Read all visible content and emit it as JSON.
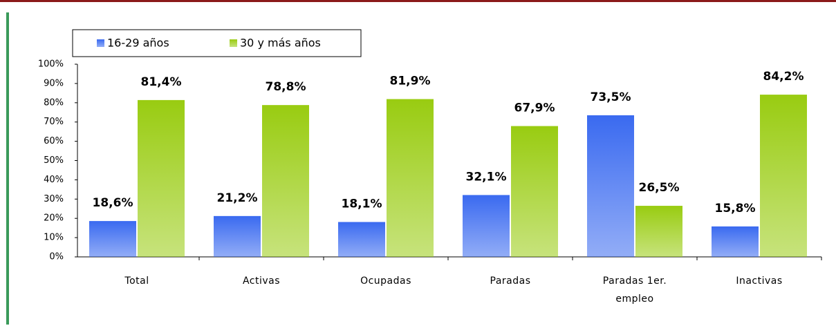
{
  "chart_data": {
    "type": "bar",
    "categories": [
      "Total",
      "Activas",
      "Ocupadas",
      "Paradas",
      "Paradas 1er. empleo",
      "Inactivas"
    ],
    "series": [
      {
        "name": "16-29 años",
        "color": "#3a6af0",
        "values": [
          18.6,
          21.2,
          18.1,
          32.1,
          73.5,
          15.8
        ],
        "value_labels": [
          "18,6%",
          "21,2%",
          "18,1%",
          "32,1%",
          "73,5%",
          "15,8%"
        ]
      },
      {
        "name": "30 y más años",
        "color": "#99cc11",
        "values": [
          81.4,
          78.8,
          81.9,
          67.9,
          26.5,
          84.2
        ],
        "value_labels": [
          "81,4%",
          "78,8%",
          "81,9%",
          "67,9%",
          "26,5%",
          "84,2%"
        ]
      }
    ],
    "ylim": [
      0,
      100
    ],
    "yticks": [
      {
        "value": 0,
        "label": "0%"
      },
      {
        "value": 10,
        "label": "10%"
      },
      {
        "value": 20,
        "label": "20%"
      },
      {
        "value": 30,
        "label": "30%"
      },
      {
        "value": 40,
        "label": "40%"
      },
      {
        "value": 50,
        "label": "50%"
      },
      {
        "value": 60,
        "label": "60%"
      },
      {
        "value": 70,
        "label": "70%"
      },
      {
        "value": 80,
        "label": "80%"
      },
      {
        "value": 90,
        "label": "90%"
      },
      {
        "value": 100,
        "label": "100%"
      }
    ],
    "legend": "top-left",
    "grid": false
  }
}
